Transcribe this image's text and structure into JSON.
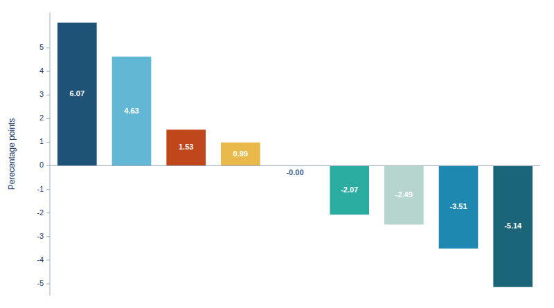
{
  "chart_data": {
    "type": "bar",
    "y_label": "Perecentage points",
    "categories": [
      null,
      null,
      null,
      null,
      null,
      null,
      null,
      null,
      null
    ],
    "values": [
      6.07,
      4.63,
      1.53,
      0.99,
      -0.0,
      -2.07,
      -2.49,
      -3.51,
      -5.14
    ],
    "value_labels": [
      "6.07",
      "4.63",
      "1.53",
      "0.99",
      "-0.00",
      "-2.07",
      "-2.49",
      "-3.51",
      "-5.14"
    ],
    "colors": [
      "#1e5276",
      "#62b8d4",
      "#c0461b",
      "#e8b84b",
      "#62b8d4",
      "#2aada0",
      "#b5d5ce",
      "#1e88b0",
      "#1a6678"
    ],
    "ylim": [
      -5.5,
      6.5
    ],
    "yticks": [
      -5,
      -4,
      -3,
      -2,
      -1,
      0,
      1,
      2,
      3,
      4,
      5
    ],
    "grid": false,
    "data_labels": true,
    "tick_labels": "y"
  }
}
